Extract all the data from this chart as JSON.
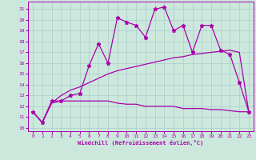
{
  "xlabel": "Windchill (Refroidissement éolien,°C)",
  "background_color": "#cce8dd",
  "grid_color": "#aacccc",
  "line_color": "#aa00aa",
  "x_ticks": [
    0,
    1,
    2,
    3,
    4,
    5,
    6,
    7,
    8,
    9,
    10,
    11,
    12,
    13,
    14,
    15,
    16,
    17,
    18,
    19,
    20,
    21,
    22,
    23
  ],
  "y_ticks": [
    10,
    11,
    12,
    13,
    14,
    15,
    16,
    17,
    18,
    19,
    20,
    21
  ],
  "xlim": [
    -0.5,
    23.5
  ],
  "ylim": [
    9.7,
    21.7
  ],
  "series": [
    {
      "x": [
        0,
        1,
        2,
        3,
        4,
        5,
        6,
        7,
        8,
        9,
        10,
        11,
        12,
        13,
        14,
        15,
        16,
        17,
        18,
        19,
        20,
        21,
        22,
        23
      ],
      "y": [
        11.5,
        10.5,
        12.5,
        12.5,
        13.0,
        13.2,
        15.8,
        17.8,
        16.0,
        20.2,
        19.8,
        19.5,
        18.4,
        21.0,
        21.2,
        19.0,
        19.5,
        17.0,
        19.5,
        19.5,
        17.2,
        16.8,
        14.2,
        11.5
      ],
      "marker": "*",
      "markersize": 3.5,
      "linewidth": 0.9
    },
    {
      "x": [
        0,
        1,
        2,
        3,
        4,
        5,
        6,
        7,
        8,
        9,
        10,
        11,
        12,
        13,
        14,
        15,
        16,
        17,
        18,
        19,
        20,
        21,
        22,
        23
      ],
      "y": [
        11.5,
        10.5,
        12.3,
        12.5,
        12.5,
        12.5,
        12.5,
        12.5,
        12.5,
        12.3,
        12.2,
        12.2,
        12.0,
        12.0,
        12.0,
        12.0,
        11.8,
        11.8,
        11.8,
        11.7,
        11.7,
        11.6,
        11.5,
        11.5
      ],
      "marker": null,
      "markersize": 0,
      "linewidth": 0.9
    },
    {
      "x": [
        0,
        1,
        2,
        3,
        4,
        5,
        6,
        7,
        8,
        9,
        10,
        11,
        12,
        13,
        14,
        15,
        16,
        17,
        18,
        19,
        20,
        21,
        22,
        23
      ],
      "y": [
        11.5,
        10.5,
        12.3,
        13.0,
        13.5,
        13.8,
        14.2,
        14.6,
        15.0,
        15.3,
        15.5,
        15.7,
        15.9,
        16.1,
        16.3,
        16.5,
        16.6,
        16.8,
        16.9,
        17.0,
        17.1,
        17.2,
        17.0,
        11.5
      ],
      "marker": null,
      "markersize": 0,
      "linewidth": 0.9
    }
  ]
}
